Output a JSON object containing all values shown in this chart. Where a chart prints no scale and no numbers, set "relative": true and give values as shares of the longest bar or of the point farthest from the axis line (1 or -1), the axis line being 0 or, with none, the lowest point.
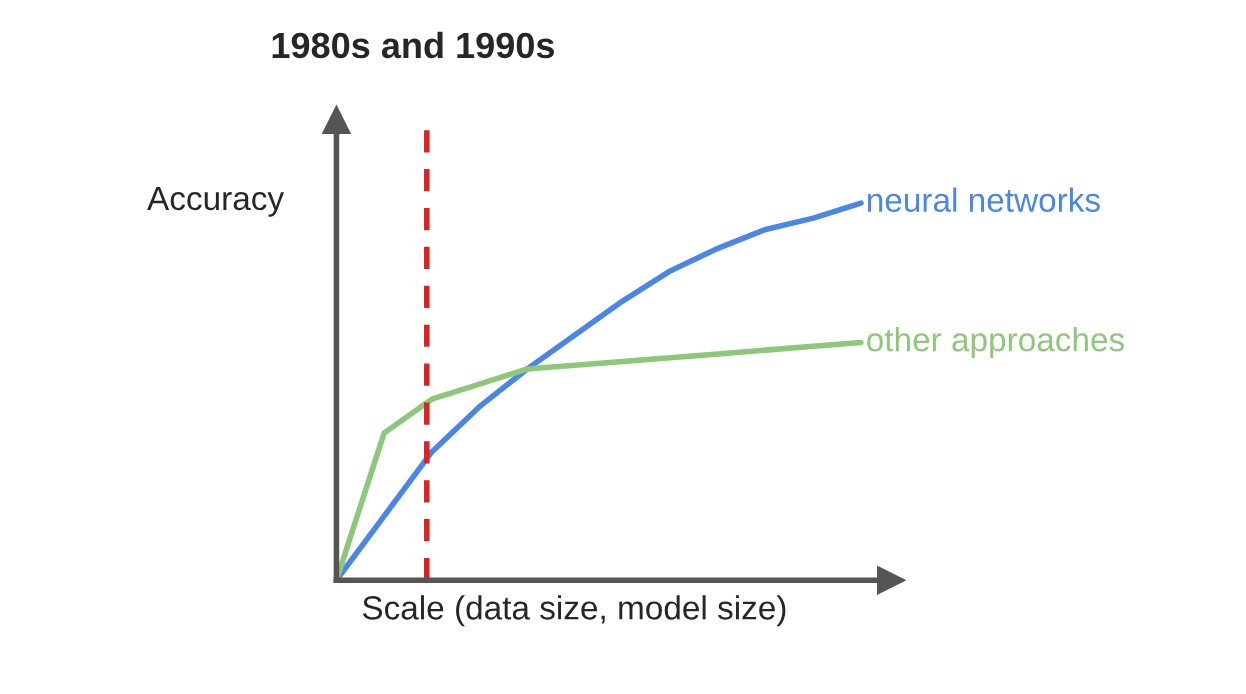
{
  "chart_data": {
    "type": "line",
    "title": "1980s and 1990s",
    "xlabel": "Scale (data size, model size)",
    "ylabel": "Accuracy",
    "relative": true,
    "categories": [
      null,
      null,
      null,
      null,
      null,
      null,
      null,
      null,
      null,
      null,
      null,
      null
    ],
    "series": [
      {
        "name": "neural networks",
        "color": "#4a86e8",
        "values": [
          0,
          0.17,
          0.34,
          0.46,
          0.56,
          0.65,
          0.74,
          0.82,
          0.88,
          0.93,
          0.96,
          1.0
        ]
      },
      {
        "name": "other approaches",
        "color": "#8cc77a",
        "values": [
          0,
          0.39,
          0.48,
          0.52,
          0.56,
          0.57,
          0.58,
          0.59,
          0.6,
          0.61,
          0.62,
          0.63
        ]
      }
    ],
    "legend": false,
    "marker": "none",
    "line_style": "solid"
  }
}
